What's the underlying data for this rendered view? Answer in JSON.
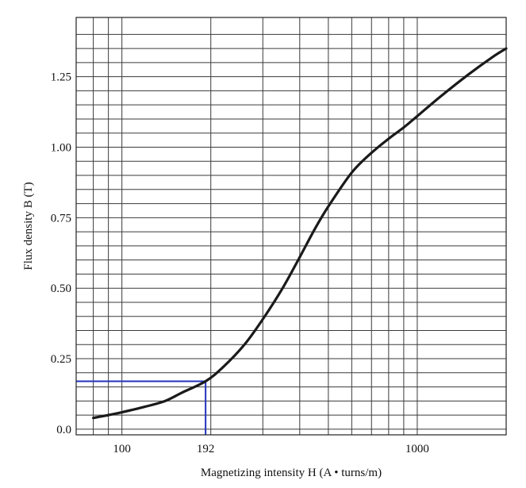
{
  "chart_data": {
    "type": "line",
    "title": "",
    "xlabel": "Magnetizing intensity H (A • turns/m)",
    "ylabel": "Flux density B (T)",
    "xscale": "log",
    "xlim": [
      70,
      2000
    ],
    "ylim": [
      -0.02,
      1.46
    ],
    "grid": true,
    "x_ticks": [
      {
        "value": 100,
        "label": "100"
      },
      {
        "value": 192,
        "label": "192"
      },
      {
        "value": 1000,
        "label": "1000"
      }
    ],
    "y_ticks": [
      {
        "value": 0.0,
        "label": "0.0"
      },
      {
        "value": 0.25,
        "label": "0.25"
      },
      {
        "value": 0.5,
        "label": "0.50"
      },
      {
        "value": 0.75,
        "label": "0.75"
      },
      {
        "value": 1.0,
        "label": "1.00"
      },
      {
        "value": 1.25,
        "label": "1.25"
      }
    ],
    "series": [
      {
        "color": "#1a1a1a",
        "points": [
          [
            80,
            0.04
          ],
          [
            90,
            0.05
          ],
          [
            100,
            0.06
          ],
          [
            120,
            0.08
          ],
          [
            140,
            0.1
          ],
          [
            160,
            0.13
          ],
          [
            192,
            0.17
          ],
          [
            220,
            0.22
          ],
          [
            260,
            0.3
          ],
          [
            300,
            0.39
          ],
          [
            350,
            0.5
          ],
          [
            400,
            0.61
          ],
          [
            450,
            0.71
          ],
          [
            500,
            0.79
          ],
          [
            600,
            0.91
          ],
          [
            700,
            0.98
          ],
          [
            800,
            1.03
          ],
          [
            900,
            1.07
          ],
          [
            1000,
            1.11
          ],
          [
            1200,
            1.18
          ],
          [
            1500,
            1.26
          ],
          [
            1800,
            1.32
          ],
          [
            2000,
            1.35
          ]
        ]
      }
    ],
    "annotation": {
      "x": 192,
      "y": 0.17,
      "color": "#2233bb"
    }
  }
}
